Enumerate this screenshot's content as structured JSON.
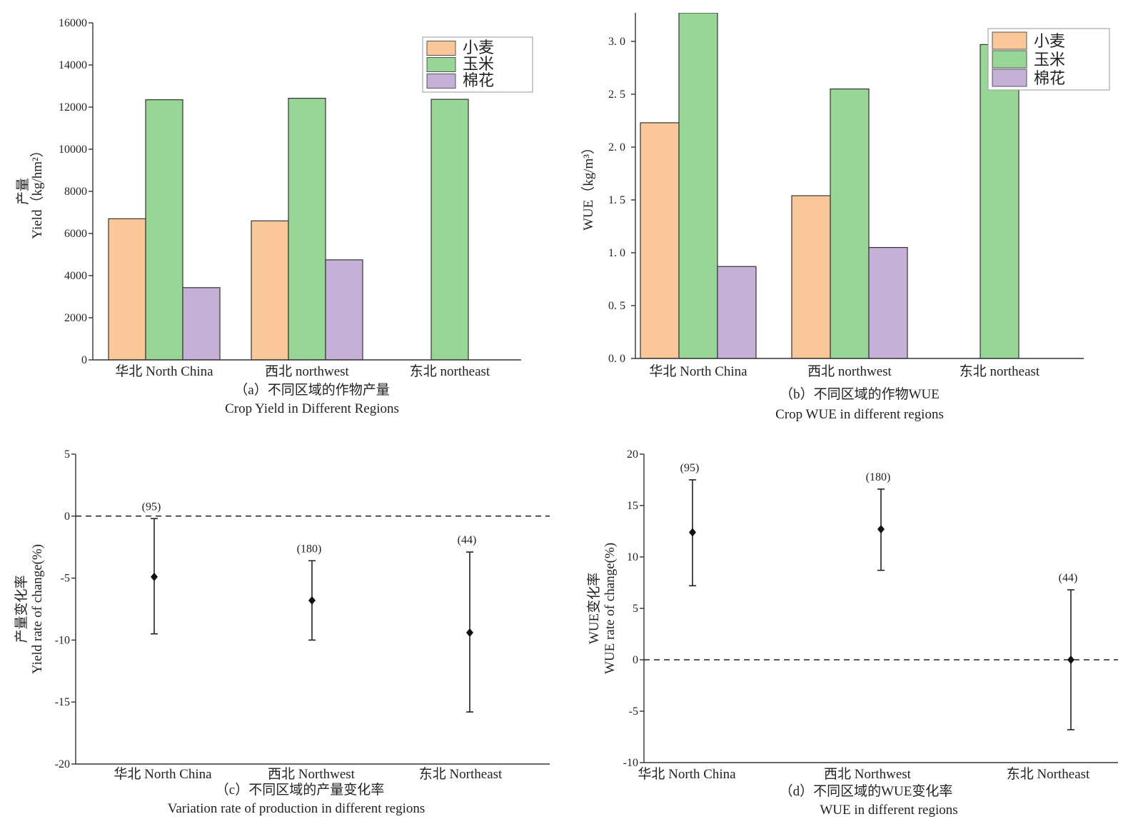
{
  "colors": {
    "wheat": "#FAC898",
    "maize": "#98D698",
    "cotton": "#C5B0D8",
    "axis": "#333333"
  },
  "chart_data": [
    {
      "id": "a",
      "type": "bar",
      "categories": [
        "华北  North China",
        "西北  northwest",
        "东北  northeast"
      ],
      "series": [
        {
          "name": "小麦",
          "values": [
            6700,
            6600,
            null
          ]
        },
        {
          "name": "玉米",
          "values": [
            12350,
            12420,
            12370
          ]
        },
        {
          "name": "棉花",
          "values": [
            3430,
            4750,
            null
          ]
        }
      ],
      "ylim": [
        0,
        16000
      ],
      "yticks": [
        "0",
        "2000",
        "4000",
        "6000",
        "8000",
        "10000",
        "12000",
        "14000",
        "16000"
      ],
      "ylabel_cn": "产量",
      "ylabel_en": "Yield（kg/hm²）",
      "caption_cn": "（a）不同区域的作物产量",
      "caption_en": "Crop Yield in Different Regions",
      "legend": "top-right"
    },
    {
      "id": "b",
      "type": "bar",
      "categories": [
        "华北  North China",
        "西北  northwest",
        "东北  northeast"
      ],
      "series": [
        {
          "name": "小麦",
          "values": [
            2.23,
            1.54,
            null
          ]
        },
        {
          "name": "玉米",
          "values": [
            3.27,
            2.55,
            2.97
          ]
        },
        {
          "name": "棉花",
          "values": [
            0.87,
            1.05,
            null
          ]
        }
      ],
      "ylim": [
        0,
        3.27
      ],
      "yticks": [
        "0. 0",
        "0. 5",
        "1. 0",
        "1. 5",
        "2. 0",
        "2. 5",
        "3. 0"
      ],
      "ylabel_en": "WUE（kg/m³）",
      "caption_cn": "（b）不同区域的作物WUE",
      "caption_en": "Crop WUE in different regions",
      "legend": "top-right"
    },
    {
      "id": "c",
      "type": "scatter",
      "categories": [
        "华北  North China",
        "西北  Northwest",
        "东北  Northeast"
      ],
      "points": [
        {
          "mean": -4.9,
          "low": -9.5,
          "high": -0.2,
          "label": "(95)"
        },
        {
          "mean": -6.8,
          "low": -10.0,
          "high": -3.6,
          "label": "(180)"
        },
        {
          "mean": -9.4,
          "low": -15.8,
          "high": -2.9,
          "label": "(44)"
        }
      ],
      "ylim": [
        -20,
        5
      ],
      "yticks": [
        "5",
        "0",
        "-5",
        "-10",
        "-15",
        "-20"
      ],
      "reference_line": 0,
      "ylabel_cn": "产量变化率",
      "ylabel_en": "Yield rate of change(%)",
      "caption_cn": "（c）不同区域的产量变化率",
      "caption_en": "Variation rate of production in different regions"
    },
    {
      "id": "d",
      "type": "scatter",
      "categories": [
        "华北  North China",
        "西北  Northwest",
        "东北  Northeast"
      ],
      "points": [
        {
          "mean": 12.4,
          "low": 7.2,
          "high": 17.5,
          "label": "(95)"
        },
        {
          "mean": 12.7,
          "low": 8.7,
          "high": 16.6,
          "label": "(180)"
        },
        {
          "mean": 0.0,
          "low": -6.8,
          "high": 6.8,
          "label": "(44)"
        }
      ],
      "ylim": [
        -10,
        20
      ],
      "yticks": [
        "20",
        "15",
        "10",
        "5",
        "0",
        "-5",
        "-10"
      ],
      "reference_line": 0,
      "ylabel_cn": "WUE变化率",
      "ylabel_en": "WUE rate of change(%)",
      "caption_cn": "（d）不同区域的WUE变化率",
      "caption_en": "WUE in different regions"
    }
  ]
}
